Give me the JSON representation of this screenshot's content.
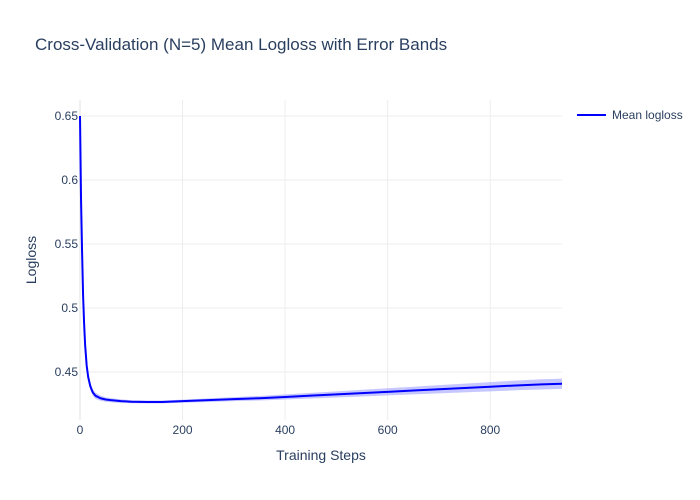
{
  "chart_data": {
    "type": "line",
    "title": "Cross-Validation (N=5) Mean Logloss with Error Bands",
    "xlabel": "Training Steps",
    "ylabel": "Logloss",
    "xlim": [
      0,
      940
    ],
    "ylim": [
      0.4125,
      0.6625
    ],
    "x_ticks": [
      0,
      200,
      400,
      600,
      800
    ],
    "x_tick_labels": [
      "0",
      "200",
      "400",
      "600",
      "800"
    ],
    "y_ticks": [
      0.45,
      0.5,
      0.55,
      0.6,
      0.65
    ],
    "y_tick_labels": [
      "0.45",
      "0.5",
      "0.55",
      "0.6",
      "0.65"
    ],
    "grid": true,
    "legend_position": "top-right",
    "line_color": "#0000ff",
    "band_color": "#9999ff",
    "series": [
      {
        "name": "Mean logloss",
        "x": [
          0,
          2,
          4,
          6,
          8,
          10,
          13,
          16,
          20,
          25,
          30,
          40,
          50,
          60,
          80,
          100,
          130,
          160,
          200,
          250,
          300,
          350,
          400,
          450,
          500,
          550,
          600,
          650,
          700,
          750,
          800,
          850,
          900,
          940
        ],
        "values": [
          0.65,
          0.585,
          0.545,
          0.51,
          0.488,
          0.471,
          0.455,
          0.446,
          0.439,
          0.434,
          0.4315,
          0.4295,
          0.4285,
          0.428,
          0.4272,
          0.4268,
          0.4266,
          0.4266,
          0.4272,
          0.428,
          0.4288,
          0.4295,
          0.4305,
          0.4315,
          0.4325,
          0.4335,
          0.4345,
          0.4355,
          0.4365,
          0.4375,
          0.4385,
          0.4395,
          0.4403,
          0.4408
        ],
        "band_lower": [
          0.646,
          0.581,
          0.541,
          0.506,
          0.485,
          0.468,
          0.452,
          0.443,
          0.436,
          0.4315,
          0.429,
          0.4275,
          0.4268,
          0.4264,
          0.4258,
          0.4256,
          0.4255,
          0.4255,
          0.426,
          0.4266,
          0.4272,
          0.4277,
          0.4285,
          0.4293,
          0.4301,
          0.4309,
          0.4317,
          0.4325,
          0.4333,
          0.4341,
          0.4349,
          0.4357,
          0.4363,
          0.4368
        ],
        "band_upper": [
          0.654,
          0.589,
          0.549,
          0.514,
          0.491,
          0.474,
          0.458,
          0.449,
          0.442,
          0.4365,
          0.434,
          0.4315,
          0.4302,
          0.4296,
          0.4286,
          0.428,
          0.4277,
          0.4277,
          0.4284,
          0.4294,
          0.4304,
          0.4313,
          0.4325,
          0.4337,
          0.4349,
          0.4361,
          0.4373,
          0.4385,
          0.4397,
          0.4409,
          0.4421,
          0.4433,
          0.4443,
          0.4448
        ]
      }
    ]
  }
}
